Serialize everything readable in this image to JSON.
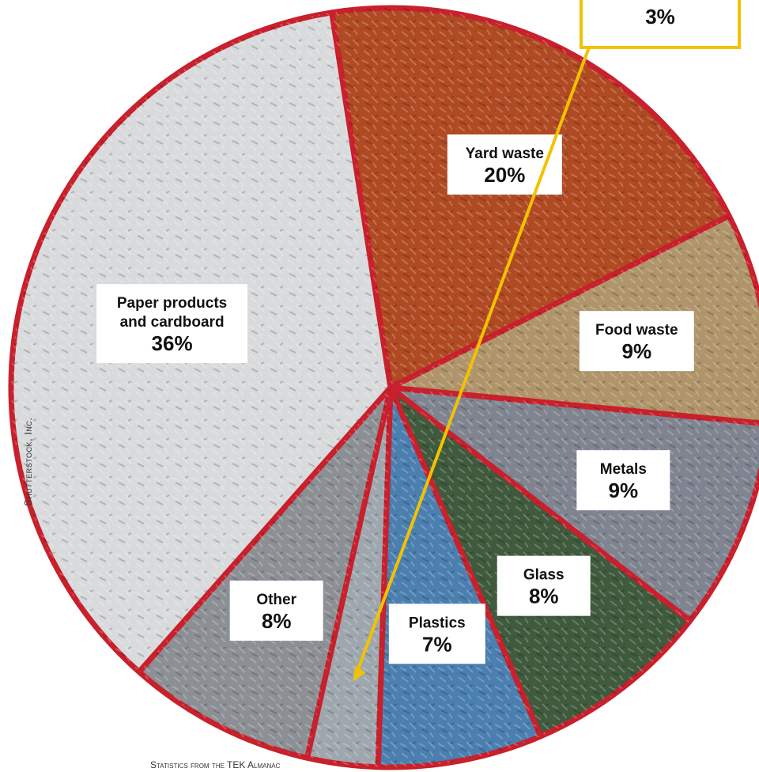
{
  "chart_data": {
    "type": "pie",
    "slices": [
      {
        "label": "Paper products and cardboard",
        "value": 36,
        "value_label": "36%",
        "lines": [
          "Paper products",
          "and cardboard"
        ],
        "color": "#d9dadc"
      },
      {
        "label": "Yard waste",
        "value": 20,
        "value_label": "20%",
        "lines": [
          "Yard waste"
        ],
        "color": "#b04a22"
      },
      {
        "label": "Food waste",
        "value": 9,
        "value_label": "9%",
        "lines": [
          "Food waste"
        ],
        "color": "#b0946a"
      },
      {
        "label": "Metals",
        "value": 9,
        "value_label": "9%",
        "lines": [
          "Metals"
        ],
        "color": "#7f8490"
      },
      {
        "label": "Glass",
        "value": 8,
        "value_label": "8%",
        "lines": [
          "Glass"
        ],
        "color": "#3f5a3c"
      },
      {
        "label": "Plastics",
        "value": 7,
        "value_label": "7%",
        "lines": [
          "Plastics"
        ],
        "color": "#4a7fb0"
      },
      {
        "label": "",
        "value": 3,
        "value_label": "3%",
        "lines": [],
        "color": "#9ea7ae",
        "callout": true
      },
      {
        "label": "Other",
        "value": 8,
        "value_label": "8%",
        "lines": [
          "Other"
        ],
        "color": "#8c9095"
      }
    ]
  },
  "colors": {
    "slice_border": "#c8202c",
    "callout_border": "#f2c200",
    "callout_arrow": "#f2c200"
  },
  "credit": "Shutterstock, Inc.",
  "source": "Statistics from the TEK Almanac"
}
